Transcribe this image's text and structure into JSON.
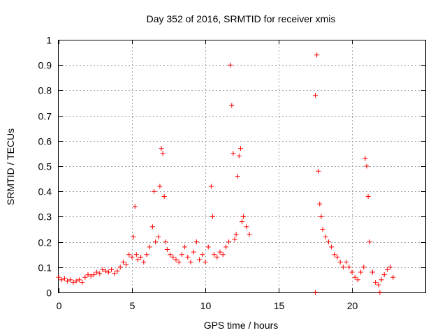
{
  "chart_data": {
    "type": "scatter",
    "title": "Day 352 of 2016, SRMTID for receiver xmis",
    "xlabel": "GPS time / hours",
    "ylabel": "SRMTID / TECUs",
    "xlim": [
      0,
      25
    ],
    "ylim": [
      0,
      1
    ],
    "x_ticks": [
      0,
      5,
      10,
      15,
      20
    ],
    "x_tick_labels": [
      "0",
      "5",
      "10",
      "15",
      "20"
    ],
    "y_ticks": [
      0,
      0.1,
      0.2,
      0.3,
      0.4,
      0.5,
      0.6,
      0.7,
      0.8,
      0.9,
      1
    ],
    "y_tick_labels": [
      "0",
      "0.1",
      "0.2",
      "0.3",
      "0.4",
      "0.5",
      "0.6",
      "0.7",
      "0.8",
      "0.9",
      "1"
    ],
    "grid": true,
    "legend": "none",
    "marker": "plus",
    "series": [
      {
        "name": "SRMTID",
        "color": "#ff0000",
        "x": [
          0.0,
          0.2,
          0.4,
          0.6,
          0.8,
          1.0,
          1.2,
          1.4,
          1.6,
          1.8,
          2.0,
          2.2,
          2.4,
          2.6,
          2.8,
          3.0,
          3.2,
          3.4,
          3.6,
          3.8,
          4.0,
          4.2,
          4.4,
          4.6,
          4.8,
          5.0,
          5.1,
          5.2,
          5.3,
          5.4,
          5.6,
          5.8,
          6.0,
          6.2,
          6.4,
          6.5,
          6.6,
          6.8,
          6.9,
          7.0,
          7.1,
          7.2,
          7.3,
          7.4,
          7.6,
          7.8,
          8.0,
          8.2,
          8.4,
          8.6,
          8.8,
          9.0,
          9.2,
          9.4,
          9.6,
          9.8,
          10.0,
          10.2,
          10.4,
          10.5,
          10.6,
          10.8,
          11.0,
          11.2,
          11.4,
          11.6,
          11.7,
          11.8,
          11.9,
          12.0,
          12.1,
          12.2,
          12.3,
          12.4,
          12.5,
          12.6,
          12.8,
          13.0,
          17.5,
          17.6,
          17.7,
          17.8,
          17.9,
          18.0,
          18.2,
          18.4,
          18.6,
          18.8,
          19.0,
          19.2,
          19.4,
          19.6,
          19.8,
          20.0,
          20.2,
          20.4,
          20.6,
          20.8,
          20.9,
          21.0,
          21.1,
          21.2,
          21.4,
          21.6,
          21.8,
          22.0,
          22.2,
          22.4,
          22.6,
          22.8,
          17.5,
          21.9
        ],
        "y": [
          0.06,
          0.05,
          0.055,
          0.045,
          0.05,
          0.04,
          0.045,
          0.05,
          0.04,
          0.06,
          0.07,
          0.065,
          0.07,
          0.08,
          0.075,
          0.09,
          0.085,
          0.08,
          0.09,
          0.075,
          0.085,
          0.1,
          0.12,
          0.11,
          0.15,
          0.14,
          0.22,
          0.34,
          0.15,
          0.13,
          0.14,
          0.12,
          0.15,
          0.18,
          0.26,
          0.4,
          0.2,
          0.22,
          0.42,
          0.57,
          0.55,
          0.38,
          0.2,
          0.17,
          0.15,
          0.14,
          0.13,
          0.12,
          0.15,
          0.18,
          0.14,
          0.12,
          0.16,
          0.2,
          0.13,
          0.15,
          0.12,
          0.18,
          0.42,
          0.3,
          0.15,
          0.14,
          0.16,
          0.15,
          0.18,
          0.2,
          0.9,
          0.74,
          0.55,
          0.21,
          0.23,
          0.46,
          0.54,
          0.57,
          0.28,
          0.3,
          0.26,
          0.23,
          0.78,
          0.94,
          0.48,
          0.35,
          0.3,
          0.25,
          0.22,
          0.2,
          0.18,
          0.15,
          0.14,
          0.12,
          0.1,
          0.12,
          0.1,
          0.08,
          0.06,
          0.05,
          0.08,
          0.1,
          0.53,
          0.5,
          0.38,
          0.2,
          0.08,
          0.04,
          0.03,
          0.05,
          0.07,
          0.09,
          0.1,
          0.06,
          0.0,
          0.0
        ]
      }
    ]
  }
}
